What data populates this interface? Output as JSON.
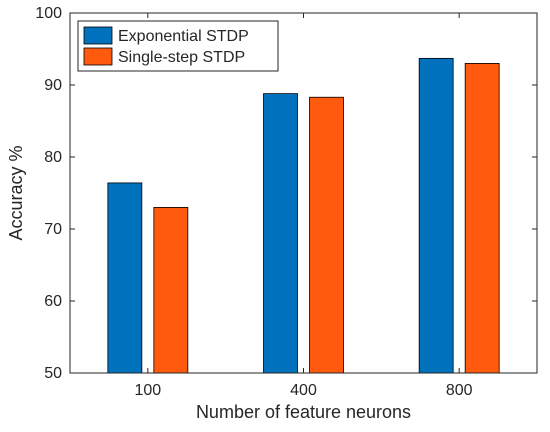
{
  "chart_data": {
    "type": "bar",
    "title": "",
    "xlabel": "Number of feature neurons",
    "ylabel": "Accuracy %",
    "categories": [
      "100",
      "400",
      "800"
    ],
    "ylim": [
      50,
      100
    ],
    "yticks": [
      50,
      60,
      70,
      80,
      90,
      100
    ],
    "grid": false,
    "legend_position": "top-left",
    "series": [
      {
        "name": "Exponential STDP",
        "values": [
          76.4,
          88.8,
          93.7
        ],
        "color": "#0072BD"
      },
      {
        "name": "Single-step STDP",
        "values": [
          73.0,
          88.3,
          93.0
        ],
        "color": "#FF5A0E"
      }
    ]
  }
}
